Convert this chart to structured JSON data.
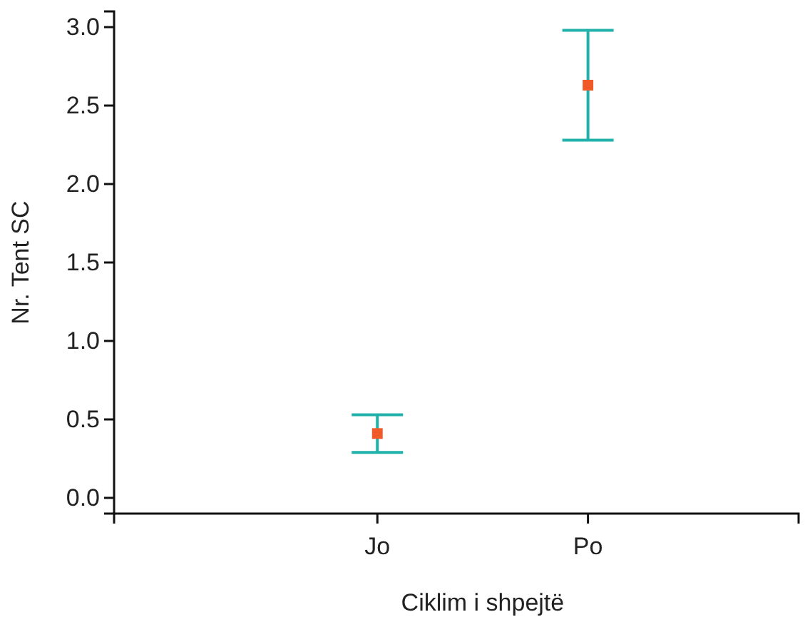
{
  "chart_data": {
    "type": "scatter",
    "xlabel": "Ciklim i shpejtë",
    "ylabel": "Nr. Tent SC",
    "categories": [
      "Jo",
      "Po"
    ],
    "series": [
      {
        "color": "#f05a28",
        "values": [
          0.41,
          2.63
        ],
        "errors": [
          0.12,
          0.35
        ]
      }
    ],
    "marker": "square",
    "ylim": [
      -0.1,
      3.1
    ],
    "yticks": [
      {
        "value": 0,
        "label": "0.0"
      },
      {
        "value": 0.5,
        "label": "0.5"
      },
      {
        "value": 1,
        "label": "1.0"
      },
      {
        "value": 1.5,
        "label": "1.5"
      },
      {
        "value": 2,
        "label": "2.0"
      },
      {
        "value": 2.5,
        "label": "2.5"
      },
      {
        "value": 3,
        "label": "3.0"
      }
    ],
    "grid": false
  }
}
